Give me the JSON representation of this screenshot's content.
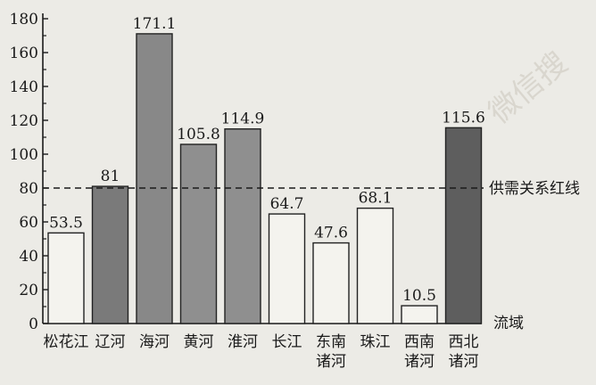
{
  "chart_data": {
    "type": "bar",
    "categories": [
      [
        "松花江"
      ],
      [
        "辽河"
      ],
      [
        "海河"
      ],
      [
        "黄河"
      ],
      [
        "淮河"
      ],
      [
        "长江"
      ],
      [
        "东南",
        "诸河"
      ],
      [
        "珠江"
      ],
      [
        "西南",
        "诸河"
      ],
      [
        "西北",
        "诸河"
      ]
    ],
    "values": [
      53.5,
      81,
      171.1,
      105.8,
      114.9,
      64.7,
      47.6,
      68.1,
      10.5,
      115.6
    ],
    "value_labels": [
      "53.5",
      "81",
      "171.1",
      "105.8",
      "114.9",
      "64.7",
      "47.6",
      "68.1",
      "10.5",
      "115.6"
    ],
    "ylim": [
      0,
      180
    ],
    "yticks": [
      0,
      20,
      40,
      60,
      80,
      100,
      120,
      140,
      160,
      180
    ],
    "reference_line": {
      "value": 80,
      "label": "供需关系红线"
    },
    "xlabel": "流域",
    "ylabel": "",
    "title": "",
    "grid": false,
    "colors": {
      "light_bar": "#f4f3ee",
      "dark_bar_levels": [
        "#7a7a7a",
        "#888888",
        "#8f8f8f",
        "#5e5e5e"
      ],
      "axis": "#1a1a1a"
    },
    "bar_shades": [
      "light",
      "dark1",
      "dark2",
      "dark3",
      "dark3",
      "light",
      "light",
      "light",
      "light",
      "dark4"
    ]
  },
  "watermark": {
    "text": "微信搜"
  }
}
